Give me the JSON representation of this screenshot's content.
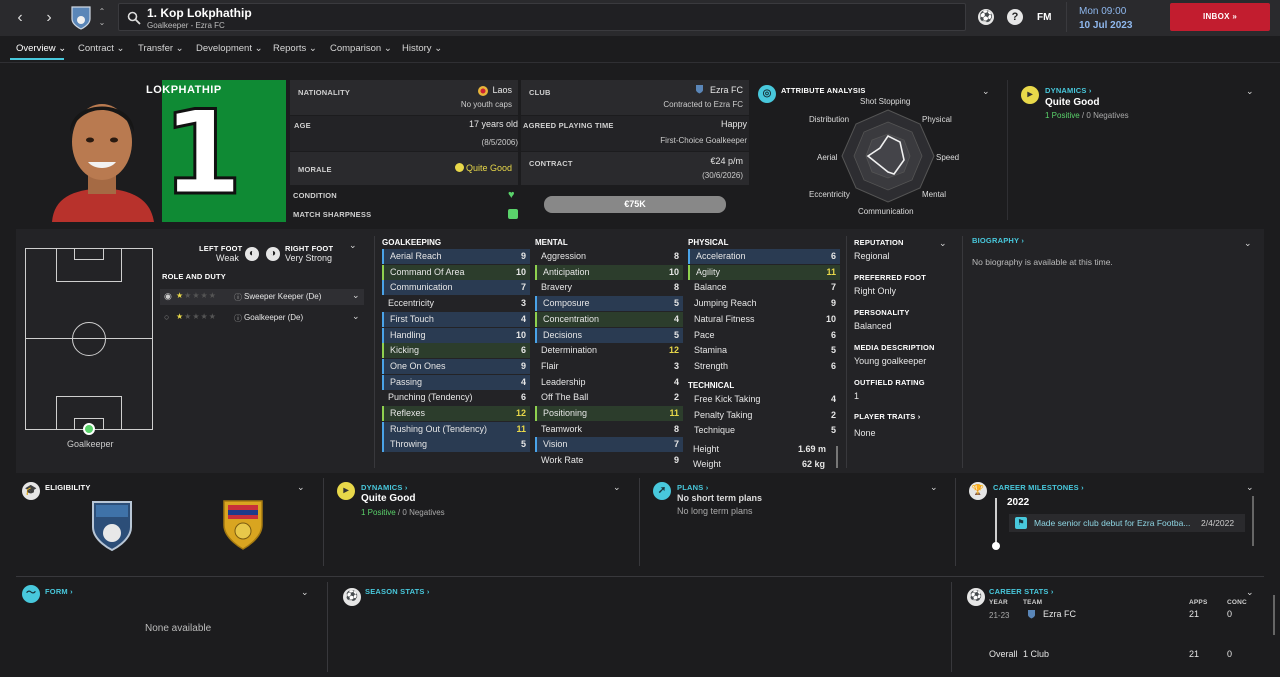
{
  "header": {
    "player_name": "1. Kop Lokphathip",
    "player_sub": "Goalkeeper - Ezra FC",
    "fm_label": "FM",
    "date_day": "Mon 09:00",
    "date_full": "10 Jul 2023",
    "inbox_label": "INBOX"
  },
  "tabs": [
    {
      "label": "Overview"
    },
    {
      "label": "Contract"
    },
    {
      "label": "Transfer"
    },
    {
      "label": "Development"
    },
    {
      "label": "Reports"
    },
    {
      "label": "Comparison"
    },
    {
      "label": "History"
    }
  ],
  "photo": {
    "name": "LOKPHATHIP",
    "number": "1"
  },
  "info": {
    "nationality_label": "NATIONALITY",
    "nationality_value": "Laos",
    "nationality_sub": "No youth caps",
    "age_label": "AGE",
    "age_value": "17 years old",
    "age_sub": "(8/5/2006)",
    "morale_label": "MORALE",
    "morale_value": "Quite Good",
    "condition_label": "CONDITION",
    "sharpness_label": "MATCH SHARPNESS",
    "club_label": "CLUB",
    "club_value": "Ezra FC",
    "club_sub": "Contracted to Ezra FC",
    "playing_time_label": "AGREED PLAYING TIME",
    "playing_time_value": "Happy",
    "playing_time_sub": "First-Choice Goalkeeper",
    "contract_label": "CONTRACT",
    "contract_value": "€24 p/m",
    "contract_sub": "(30/6/2026)",
    "value_label": "€75K"
  },
  "attribute_analysis": {
    "title": "ATTRIBUTE ANALYSIS",
    "axes": [
      "Shot Stopping",
      "Physical",
      "Speed",
      "Mental",
      "Communication",
      "Eccentricity",
      "Aerial",
      "Distribution"
    ]
  },
  "dynamics_top": {
    "title": "DYNAMICS",
    "value": "Quite Good",
    "positives": "1 Positive",
    "sep": "/",
    "negatives": "0 Negatives"
  },
  "feet": {
    "left_label": "LEFT FOOT",
    "left_value": "Weak",
    "right_label": "RIGHT FOOT",
    "right_value": "Very Strong"
  },
  "role_duty": {
    "title": "ROLE AND DUTY",
    "roles": [
      {
        "name": "Sweeper Keeper (De)",
        "stars": 0.5
      },
      {
        "name": "Goalkeeper (De)",
        "stars": 0.5
      }
    ]
  },
  "position_label": "Goalkeeper",
  "goalkeeping": {
    "title": "GOALKEEPING",
    "rows": [
      {
        "name": "Aerial Reach",
        "value": "9",
        "hl": "blue"
      },
      {
        "name": "Command Of Area",
        "value": "10",
        "hl": "green"
      },
      {
        "name": "Communication",
        "value": "7",
        "hl": "blue"
      },
      {
        "name": "Eccentricity",
        "value": "3",
        "hl": ""
      },
      {
        "name": "First Touch",
        "value": "4",
        "hl": "blue"
      },
      {
        "name": "Handling",
        "value": "10",
        "hl": "blue"
      },
      {
        "name": "Kicking",
        "value": "6",
        "hl": "green"
      },
      {
        "name": "One On Ones",
        "value": "9",
        "hl": "blue"
      },
      {
        "name": "Passing",
        "value": "4",
        "hl": "blue"
      },
      {
        "name": "Punching (Tendency)",
        "value": "6",
        "hl": ""
      },
      {
        "name": "Reflexes",
        "value": "12",
        "hl": "green"
      },
      {
        "name": "Rushing Out (Tendency)",
        "value": "11",
        "hl": "blue"
      },
      {
        "name": "Throwing",
        "value": "5",
        "hl": "blue"
      }
    ]
  },
  "mental": {
    "title": "MENTAL",
    "rows": [
      {
        "name": "Aggression",
        "value": "8",
        "hl": ""
      },
      {
        "name": "Anticipation",
        "value": "10",
        "hl": "green"
      },
      {
        "name": "Bravery",
        "value": "8",
        "hl": ""
      },
      {
        "name": "Composure",
        "value": "5",
        "hl": "blue"
      },
      {
        "name": "Concentration",
        "value": "4",
        "hl": "green"
      },
      {
        "name": "Decisions",
        "value": "5",
        "hl": "blue"
      },
      {
        "name": "Determination",
        "value": "12",
        "hl": ""
      },
      {
        "name": "Flair",
        "value": "3",
        "hl": ""
      },
      {
        "name": "Leadership",
        "value": "4",
        "hl": ""
      },
      {
        "name": "Off The Ball",
        "value": "2",
        "hl": ""
      },
      {
        "name": "Positioning",
        "value": "11",
        "hl": "green"
      },
      {
        "name": "Teamwork",
        "value": "8",
        "hl": ""
      },
      {
        "name": "Vision",
        "value": "7",
        "hl": "blue"
      },
      {
        "name": "Work Rate",
        "value": "9",
        "hl": ""
      }
    ]
  },
  "physical": {
    "title": "PHYSICAL",
    "rows": [
      {
        "name": "Acceleration",
        "value": "6",
        "hl": "blue"
      },
      {
        "name": "Agility",
        "value": "11",
        "hl": "green"
      },
      {
        "name": "Balance",
        "value": "7",
        "hl": ""
      },
      {
        "name": "Jumping Reach",
        "value": "9",
        "hl": ""
      },
      {
        "name": "Natural Fitness",
        "value": "10",
        "hl": ""
      },
      {
        "name": "Pace",
        "value": "6",
        "hl": ""
      },
      {
        "name": "Stamina",
        "value": "5",
        "hl": ""
      },
      {
        "name": "Strength",
        "value": "6",
        "hl": ""
      }
    ]
  },
  "technical": {
    "title": "TECHNICAL",
    "rows": [
      {
        "name": "Free Kick Taking",
        "value": "4",
        "hl": ""
      },
      {
        "name": "Penalty Taking",
        "value": "2",
        "hl": ""
      },
      {
        "name": "Technique",
        "value": "5",
        "hl": ""
      }
    ],
    "height_label": "Height",
    "height_value": "1.69 m",
    "weight_label": "Weight",
    "weight_value": "62 kg"
  },
  "profile": {
    "reputation_label": "REPUTATION",
    "reputation_value": "Regional",
    "foot_label": "PREFERRED FOOT",
    "foot_value": "Right Only",
    "personality_label": "PERSONALITY",
    "personality_value": "Balanced",
    "media_label": "MEDIA DESCRIPTION",
    "media_value": "Young goalkeeper",
    "outfield_label": "OUTFIELD RATING",
    "outfield_value": "1",
    "traits_label": "PLAYER TRAITS",
    "traits_value": "None"
  },
  "biography": {
    "title": "BIOGRAPHY",
    "text": "No biography is available at this time."
  },
  "eligibility": {
    "title": "ELIGIBILITY"
  },
  "dynamics_bottom": {
    "title": "DYNAMICS",
    "value": "Quite Good",
    "positives": "1 Positive",
    "sep": "/",
    "negatives": "0 Negatives"
  },
  "plans": {
    "title": "PLANS",
    "short": "No short term plans",
    "long": "No long term plans"
  },
  "milestones": {
    "title": "CAREER MILESTONES",
    "year": "2022",
    "text": "Made senior club debut for Ezra Footba...",
    "date": "2/4/2022"
  },
  "form": {
    "title": "FORM",
    "text": "None available"
  },
  "season_stats": {
    "title": "SEASON STATS"
  },
  "career_stats": {
    "title": "CAREER STATS",
    "col_year": "YEAR",
    "col_team": "TEAM",
    "col_apps": "APPS",
    "col_conc": "CONC",
    "row_year": "21-23",
    "row_team": "Ezra FC",
    "row_apps": "21",
    "row_conc": "0",
    "overall_label": "Overall",
    "overall_clubs": "1 Club",
    "overall_apps": "21",
    "overall_conc": "0"
  },
  "colors": {
    "accent": "#48c8dc",
    "inbox": "#c21d2f",
    "pitch_green": "#0f8a34"
  }
}
